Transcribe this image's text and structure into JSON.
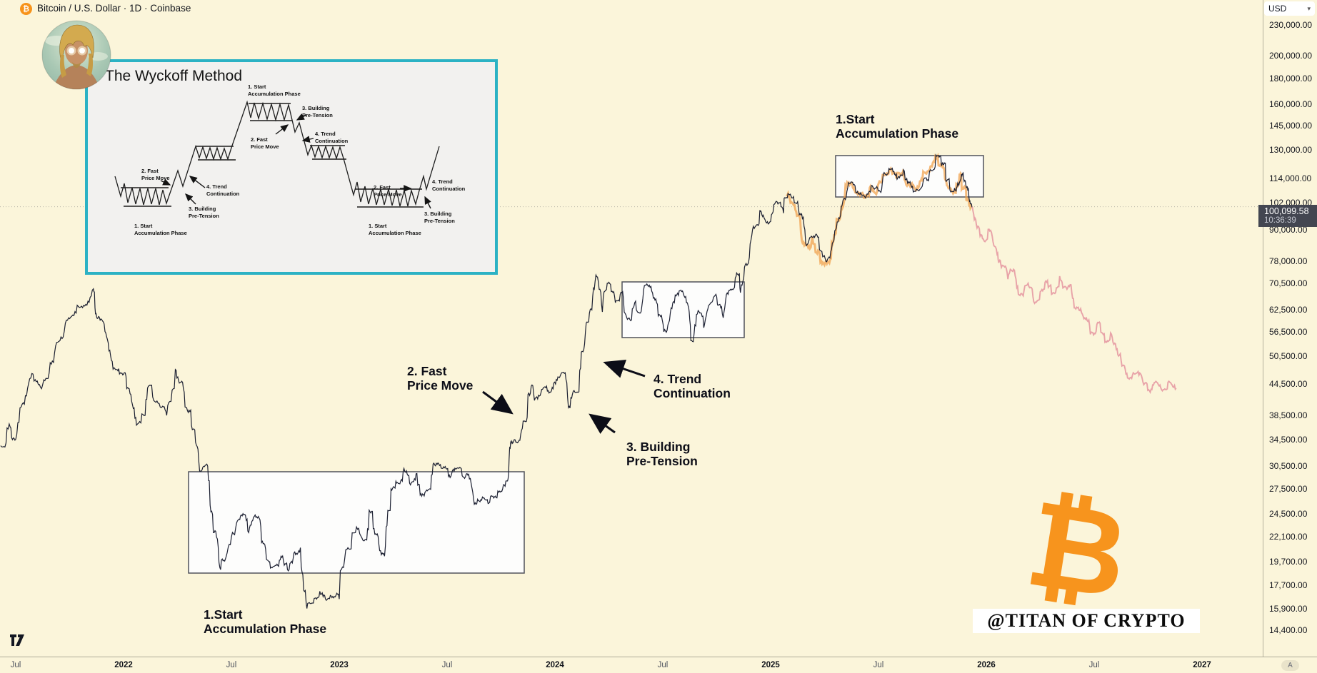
{
  "header": {
    "symbol_title": "Bitcoin / U.S. Dollar · 1D · Coinbase",
    "bitcoin_glyph": "₿"
  },
  "toolbar": {
    "currency_selected": "USD"
  },
  "price_scale": {
    "current_price": "100,099.58",
    "countdown": "10:36:39",
    "auto_button": "A"
  },
  "time_axis": {
    "labels": [
      {
        "text": "Jul",
        "t": 2021.5
      },
      {
        "text": "2022",
        "t": 2022
      },
      {
        "text": "Jul",
        "t": 2022.5
      },
      {
        "text": "2023",
        "t": 2023
      },
      {
        "text": "Jul",
        "t": 2023.5
      },
      {
        "text": "2024",
        "t": 2024
      },
      {
        "text": "Jul",
        "t": 2024.5
      },
      {
        "text": "2025",
        "t": 2025
      },
      {
        "text": "Jul",
        "t": 2025.5
      },
      {
        "text": "2026",
        "t": 2026
      },
      {
        "text": "Jul",
        "t": 2026.5
      },
      {
        "text": "2027",
        "t": 2027
      }
    ]
  },
  "inset": {
    "title": "The Wyckoff Method",
    "phases": {
      "p1": "1. Start\nAccumulation Phase",
      "p2": "2. Fast\nPrice Move",
      "p3": "3. Building\nPre-Tension",
      "p4": "4. Trend\nContinuation"
    }
  },
  "annotations": {
    "acc_top": "1.Start\nAccumulation Phase",
    "fast": "2. Fast\nPrice Move",
    "trend": "4. Trend\nContinuation",
    "building": "3. Building\nPre-Tension",
    "acc_bottom": "1.Start\nAccumulation Phase"
  },
  "watermark": {
    "bitcoin_glyph": "₿",
    "handle": "@TITAN OF CRYPTO"
  },
  "colors": {
    "background": "#fbf5da",
    "line": "#1b1f31",
    "ghost_overlay": "#f0a04a",
    "projection": "#d95f7f",
    "box_fill": "#fdfdfc",
    "box_border": "#50525b",
    "inset_border": "#2cb2c4",
    "bitcoin_orange": "#f7931a",
    "price_label_bg": "#434651"
  },
  "chart_data": {
    "type": "line",
    "title": "Bitcoin / U.S. Dollar",
    "interval": "1D",
    "exchange": "Coinbase",
    "y_scale": "log",
    "grid": false,
    "x_range_years": [
      2021.43,
      2027.1
    ],
    "price_ticks": [
      230000,
      200000,
      180000,
      160000,
      145000,
      130000,
      114000,
      102000,
      90000,
      78000,
      70500,
      62500,
      56500,
      50500,
      44500,
      38500,
      34500,
      30500,
      27500,
      24500,
      22100,
      19700,
      17700,
      15900,
      14400
    ],
    "current_price": 100099.58,
    "series": [
      {
        "name": "BTCUSD close",
        "style": "solid",
        "points": [
          [
            2021.43,
            33500
          ],
          [
            2021.47,
            37000
          ],
          [
            2021.5,
            34500
          ],
          [
            2021.54,
            40500
          ],
          [
            2021.58,
            46500
          ],
          [
            2021.62,
            43500
          ],
          [
            2021.66,
            49000
          ],
          [
            2021.7,
            54000
          ],
          [
            2021.74,
            59500
          ],
          [
            2021.78,
            61500
          ],
          [
            2021.82,
            63500
          ],
          [
            2021.86,
            68700
          ],
          [
            2021.88,
            60000
          ],
          [
            2021.91,
            58500
          ],
          [
            2021.94,
            50500
          ],
          [
            2021.97,
            47500
          ],
          [
            2022.0,
            46500
          ],
          [
            2022.03,
            42500
          ],
          [
            2022.06,
            36800
          ],
          [
            2022.1,
            38500
          ],
          [
            2022.13,
            44200
          ],
          [
            2022.17,
            40000
          ],
          [
            2022.2,
            38500
          ],
          [
            2022.24,
            47500
          ],
          [
            2022.27,
            45000
          ],
          [
            2022.3,
            39000
          ],
          [
            2022.33,
            36000
          ],
          [
            2022.36,
            29800
          ],
          [
            2022.39,
            30500
          ],
          [
            2022.42,
            22500
          ],
          [
            2022.45,
            19000
          ],
          [
            2022.48,
            20500
          ],
          [
            2022.52,
            23000
          ],
          [
            2022.55,
            24300
          ],
          [
            2022.58,
            22500
          ],
          [
            2022.61,
            24400
          ],
          [
            2022.64,
            21500
          ],
          [
            2022.67,
            19800
          ],
          [
            2022.7,
            19300
          ],
          [
            2022.73,
            20200
          ],
          [
            2022.76,
            19000
          ],
          [
            2022.79,
            20500
          ],
          [
            2022.82,
            21000
          ],
          [
            2022.85,
            15900
          ],
          [
            2022.88,
            16300
          ],
          [
            2022.91,
            17200
          ],
          [
            2022.94,
            16500
          ],
          [
            2022.97,
            16800
          ],
          [
            2023.0,
            16600
          ],
          [
            2023.04,
            21000
          ],
          [
            2023.08,
            23100
          ],
          [
            2023.12,
            21800
          ],
          [
            2023.15,
            24800
          ],
          [
            2023.18,
            22100
          ],
          [
            2023.21,
            20200
          ],
          [
            2023.24,
            27500
          ],
          [
            2023.27,
            28300
          ],
          [
            2023.3,
            30200
          ],
          [
            2023.33,
            28000
          ],
          [
            2023.36,
            29500
          ],
          [
            2023.39,
            26800
          ],
          [
            2023.42,
            27500
          ],
          [
            2023.45,
            30900
          ],
          [
            2023.48,
            30200
          ],
          [
            2023.51,
            29300
          ],
          [
            2023.54,
            30100
          ],
          [
            2023.57,
            29200
          ],
          [
            2023.6,
            29400
          ],
          [
            2023.63,
            25800
          ],
          [
            2023.66,
            26100
          ],
          [
            2023.69,
            25700
          ],
          [
            2023.72,
            26500
          ],
          [
            2023.75,
            27200
          ],
          [
            2023.78,
            28500
          ],
          [
            2023.8,
            34200
          ],
          [
            2023.83,
            34100
          ],
          [
            2023.86,
            37500
          ],
          [
            2023.89,
            44000
          ],
          [
            2023.92,
            41500
          ],
          [
            2023.95,
            43800
          ],
          [
            2023.98,
            42800
          ],
          [
            2024.01,
            45200
          ],
          [
            2024.04,
            46900
          ],
          [
            2024.07,
            39800
          ],
          [
            2024.1,
            42800
          ],
          [
            2024.13,
            51500
          ],
          [
            2024.16,
            61500
          ],
          [
            2024.19,
            73200
          ],
          [
            2024.22,
            61800
          ],
          [
            2024.25,
            70800
          ],
          [
            2024.28,
            64500
          ],
          [
            2024.31,
            67500
          ],
          [
            2024.34,
            60000
          ],
          [
            2024.37,
            64500
          ],
          [
            2024.4,
            62000
          ],
          [
            2024.43,
            69800
          ],
          [
            2024.46,
            66000
          ],
          [
            2024.49,
            60500
          ],
          [
            2024.52,
            56800
          ],
          [
            2024.55,
            64800
          ],
          [
            2024.58,
            68200
          ],
          [
            2024.61,
            64500
          ],
          [
            2024.63,
            54200
          ],
          [
            2024.66,
            61200
          ],
          [
            2024.69,
            57500
          ],
          [
            2024.72,
            64200
          ],
          [
            2024.75,
            66200
          ],
          [
            2024.78,
            60200
          ],
          [
            2024.81,
            68200
          ],
          [
            2024.84,
            72800
          ],
          [
            2024.86,
            67500
          ],
          [
            2024.89,
            76500
          ],
          [
            2024.92,
            91500
          ],
          [
            2024.95,
            98500
          ],
          [
            2024.97,
            95000
          ],
          [
            2025.0,
            93500
          ],
          [
            2025.03,
            102300
          ],
          [
            2025.06,
            97200
          ],
          [
            2025.08,
            106200
          ],
          [
            2025.11,
            101800
          ],
          [
            2025.14,
            96400
          ],
          [
            2025.17,
            84200
          ],
          [
            2025.2,
            87500
          ],
          [
            2025.23,
            81800
          ],
          [
            2025.26,
            77800
          ],
          [
            2025.29,
            85200
          ],
          [
            2025.32,
            94800
          ],
          [
            2025.35,
            104500
          ],
          [
            2025.38,
            111800
          ],
          [
            2025.41,
            106300
          ],
          [
            2025.44,
            104200
          ],
          [
            2025.47,
            110300
          ],
          [
            2025.5,
            107500
          ],
          [
            2025.53,
            116300
          ],
          [
            2025.56,
            118800
          ],
          [
            2025.59,
            114200
          ],
          [
            2025.62,
            117800
          ],
          [
            2025.65,
            110800
          ],
          [
            2025.68,
            108200
          ],
          [
            2025.71,
            113500
          ],
          [
            2025.74,
            118500
          ],
          [
            2025.77,
            126100
          ],
          [
            2025.8,
            121500
          ],
          [
            2025.82,
            113200
          ],
          [
            2025.85,
            107400
          ],
          [
            2025.87,
            111000
          ],
          [
            2025.89,
            116500
          ],
          [
            2025.91,
            109500
          ],
          [
            2025.92,
            104000
          ],
          [
            2025.935,
            100100
          ]
        ]
      },
      {
        "name": "projected decline",
        "style": "projection",
        "points": [
          [
            2025.935,
            100100
          ],
          [
            2025.96,
            91500
          ],
          [
            2025.99,
            85500
          ],
          [
            2026.02,
            89800
          ],
          [
            2026.05,
            80500
          ],
          [
            2026.07,
            75800
          ],
          [
            2026.1,
            71800
          ],
          [
            2026.13,
            74800
          ],
          [
            2026.16,
            67200
          ],
          [
            2026.19,
            70000
          ],
          [
            2026.22,
            64800
          ],
          [
            2026.25,
            67800
          ],
          [
            2026.28,
            70800
          ],
          [
            2026.31,
            67500
          ],
          [
            2026.34,
            72800
          ],
          [
            2026.37,
            69200
          ],
          [
            2026.4,
            65800
          ],
          [
            2026.43,
            62300
          ],
          [
            2026.46,
            59800
          ],
          [
            2026.49,
            56300
          ],
          [
            2026.52,
            58800
          ],
          [
            2026.55,
            53800
          ],
          [
            2026.58,
            55800
          ],
          [
            2026.61,
            50800
          ],
          [
            2026.64,
            48300
          ],
          [
            2026.67,
            45800
          ],
          [
            2026.7,
            46800
          ],
          [
            2026.73,
            44300
          ],
          [
            2026.76,
            42800
          ],
          [
            2026.79,
            44800
          ],
          [
            2026.82,
            43300
          ],
          [
            2026.85,
            44800
          ],
          [
            2026.88,
            43600
          ]
        ]
      },
      {
        "name": "orange ghost overlay",
        "style": "ghost",
        "t_range": [
          2025.1,
          2025.93
        ]
      }
    ],
    "ranges": [
      {
        "label": "accumulation 2022-2023",
        "t": [
          2022.3,
          2023.855
        ],
        "price": [
          18700,
          29700
        ]
      },
      {
        "label": "consolidation 2024",
        "t": [
          2024.31,
          2024.877
        ],
        "price": [
          55000,
          70900
        ]
      },
      {
        "label": "accumulation 2025",
        "t": [
          2025.3,
          2025.985
        ],
        "price": [
          104900,
          126600
        ]
      }
    ]
  }
}
